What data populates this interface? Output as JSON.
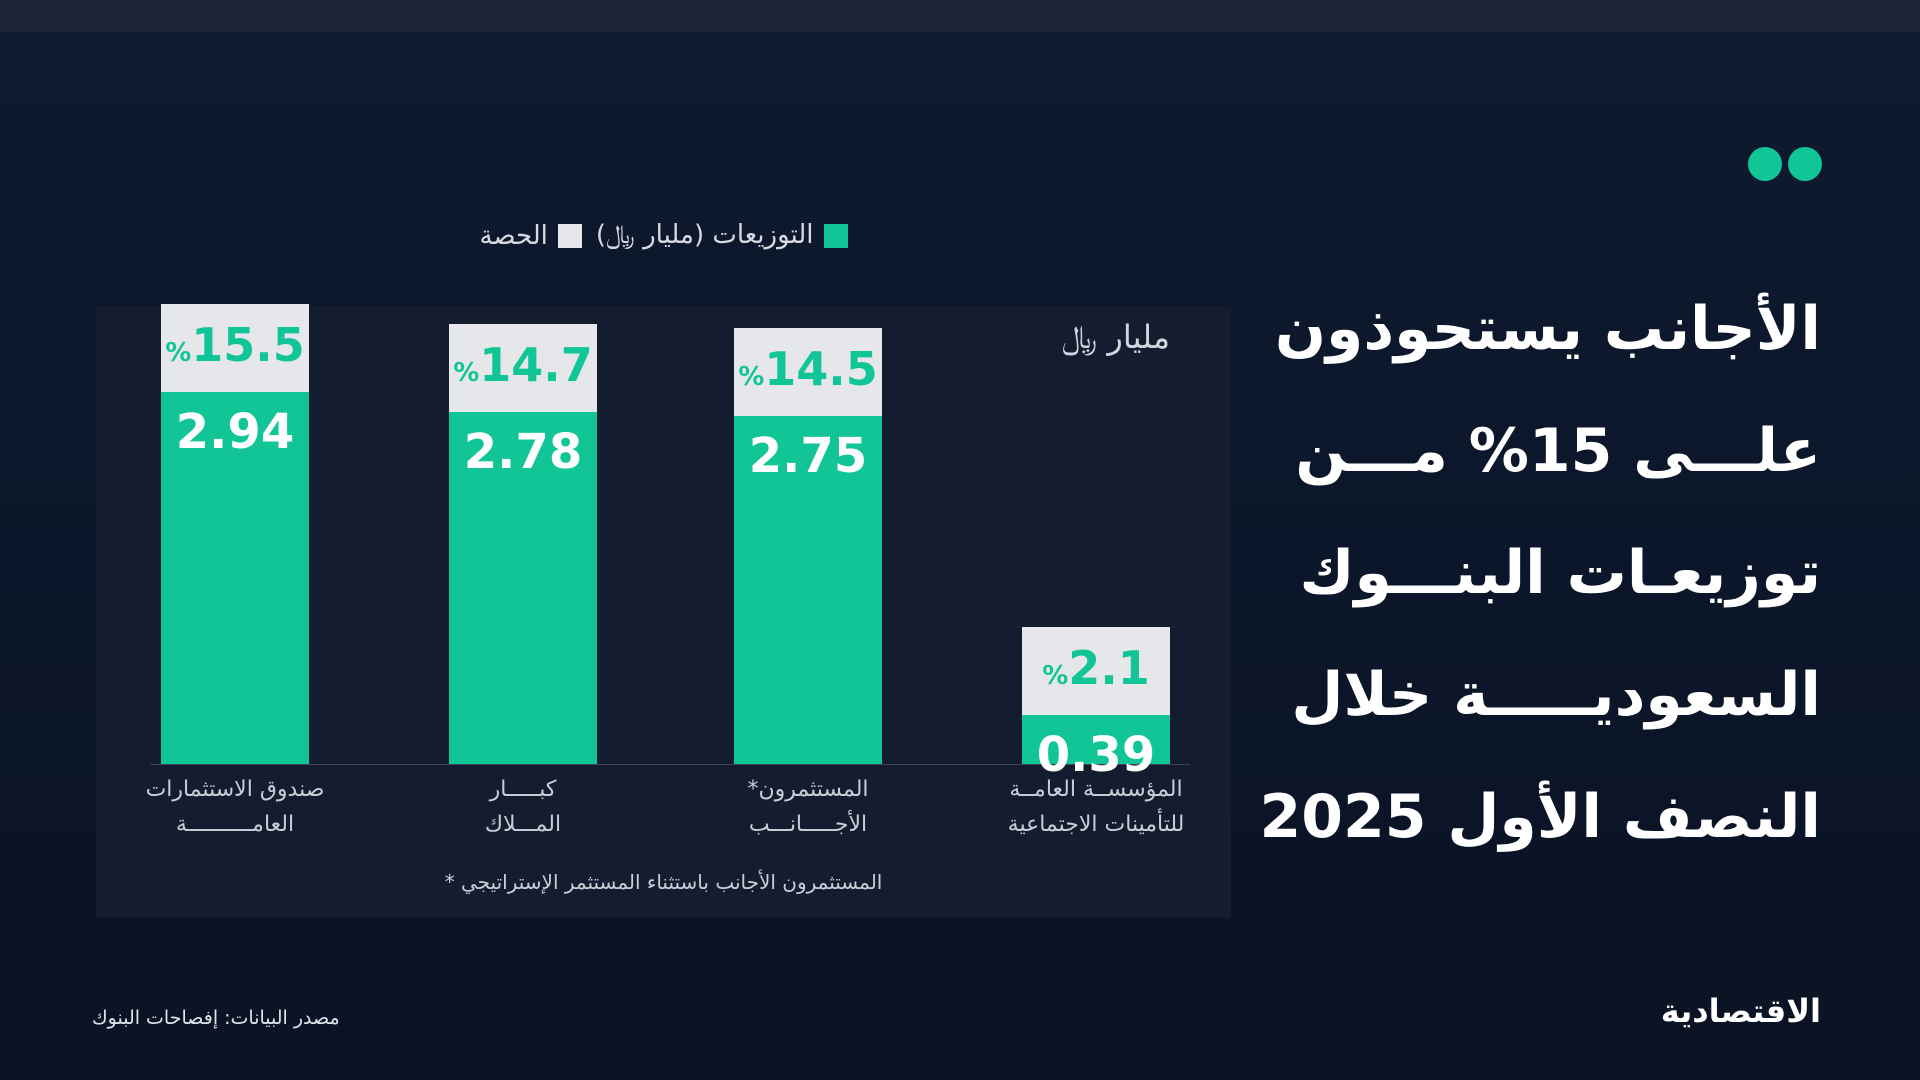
{
  "chart_data": {
    "type": "bar",
    "title": "الأجانب يستحوذون\nعلـــى 15% مـــن\nتوزيعـات البنـــوك\nالسعوديـــــة خلال\nالنصف الأول 2025",
    "unit_label": "مليار ﷼",
    "categories": [
      "صندوق الاستثمارات\nالعامــــــــــة",
      "كبـــــار\nالمـــلاك",
      "المستثمرون*\nالأجـــــانـــب",
      "المؤسســة العامــة\nللتأمينات الاجتماعية"
    ],
    "series": [
      {
        "name": "التوزيعات (مليار ﷼)",
        "color": "#12c596",
        "values": [
          2.94,
          2.78,
          2.75,
          0.39
        ]
      },
      {
        "name": "الحصة",
        "color": "#e6e7ea",
        "unit": "%",
        "values": [
          15.5,
          14.7,
          14.5,
          2.1
        ]
      }
    ],
    "footnote": "المستثمرون الأجانب باستثناء المستثمر الإستراتيجي *"
  },
  "footer": {
    "source": "مصدر البيانات: إفصاحات البنوك",
    "logo": "الاقتصادية"
  }
}
